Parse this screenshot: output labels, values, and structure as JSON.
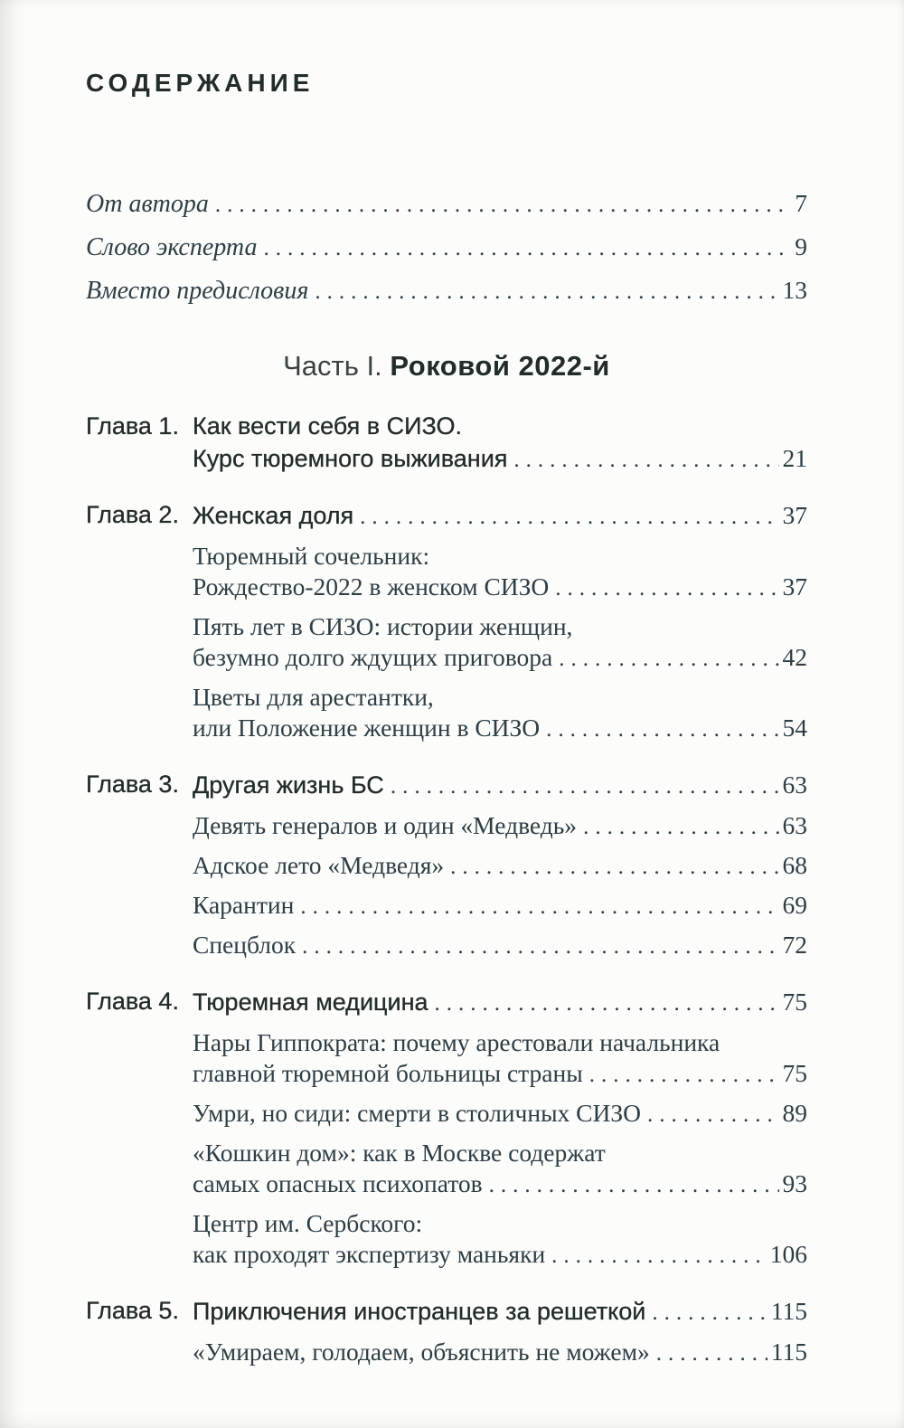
{
  "page_title": "СОДЕРЖАНИЕ",
  "colors": {
    "ink_sans": "#222c28",
    "ink_serif": "#2e3e45",
    "paper": "#fcfcfb"
  },
  "front_matter": [
    {
      "title": "От автора",
      "page": "7"
    },
    {
      "title": "Слово эксперта",
      "page": "9"
    },
    {
      "title": "Вместо предисловия",
      "page": "13"
    }
  ],
  "part": {
    "prefix": "Часть I.",
    "title": "Роковой 2022-й"
  },
  "chapters": [
    {
      "label": "Глава 1.",
      "lines": [
        "Как вести себя в СИЗО."
      ],
      "last_line": "Курс тюремного выживания",
      "page": "21",
      "subs": []
    },
    {
      "label": "Глава 2.",
      "lines": [],
      "last_line": "Женская доля",
      "page": "37",
      "subs": [
        {
          "lines": [
            "Тюремный сочельник:"
          ],
          "last_line": "Рождество-2022 в женском СИЗО",
          "page": "37"
        },
        {
          "lines": [
            "Пять лет в СИЗО: истории женщин,"
          ],
          "last_line": "безумно долго ждущих приговора",
          "page": "42"
        },
        {
          "lines": [
            "Цветы для арестантки,"
          ],
          "last_line": "или Положение женщин в СИЗО",
          "page": "54"
        }
      ]
    },
    {
      "label": "Глава 3.",
      "lines": [],
      "last_line": "Другая жизнь БС",
      "page": "63",
      "subs": [
        {
          "lines": [],
          "last_line": "Девять генералов и один «Медведь»",
          "page": "63"
        },
        {
          "lines": [],
          "last_line": "Адское лето «Медведя»",
          "page": "68"
        },
        {
          "lines": [],
          "last_line": "Карантин",
          "page": "69"
        },
        {
          "lines": [],
          "last_line": "Спецблок",
          "page": "72"
        }
      ]
    },
    {
      "label": "Глава 4.",
      "lines": [],
      "last_line": "Тюремная медицина",
      "page": "75",
      "subs": [
        {
          "lines": [
            "Нары Гиппократа: почему арестовали начальника"
          ],
          "last_line": "главной тюремной больницы страны",
          "page": "75"
        },
        {
          "lines": [],
          "last_line": "Умри, но сиди: смерти в столичных СИЗО",
          "page": "89"
        },
        {
          "lines": [
            "«Кошкин дом»: как в Москве содержат"
          ],
          "last_line": "самых опасных психопатов",
          "page": "93"
        },
        {
          "lines": [
            "Центр им. Сербского:"
          ],
          "last_line": "как проходят экспертизу маньяки",
          "page": "106"
        }
      ]
    },
    {
      "label": "Глава 5.",
      "lines": [],
      "last_line": "Приключения иностранцев за решеткой",
      "page": "115",
      "subs": [
        {
          "lines": [],
          "last_line": "«Умираем, голодаем, объяснить не можем»",
          "page": "115"
        }
      ]
    }
  ]
}
